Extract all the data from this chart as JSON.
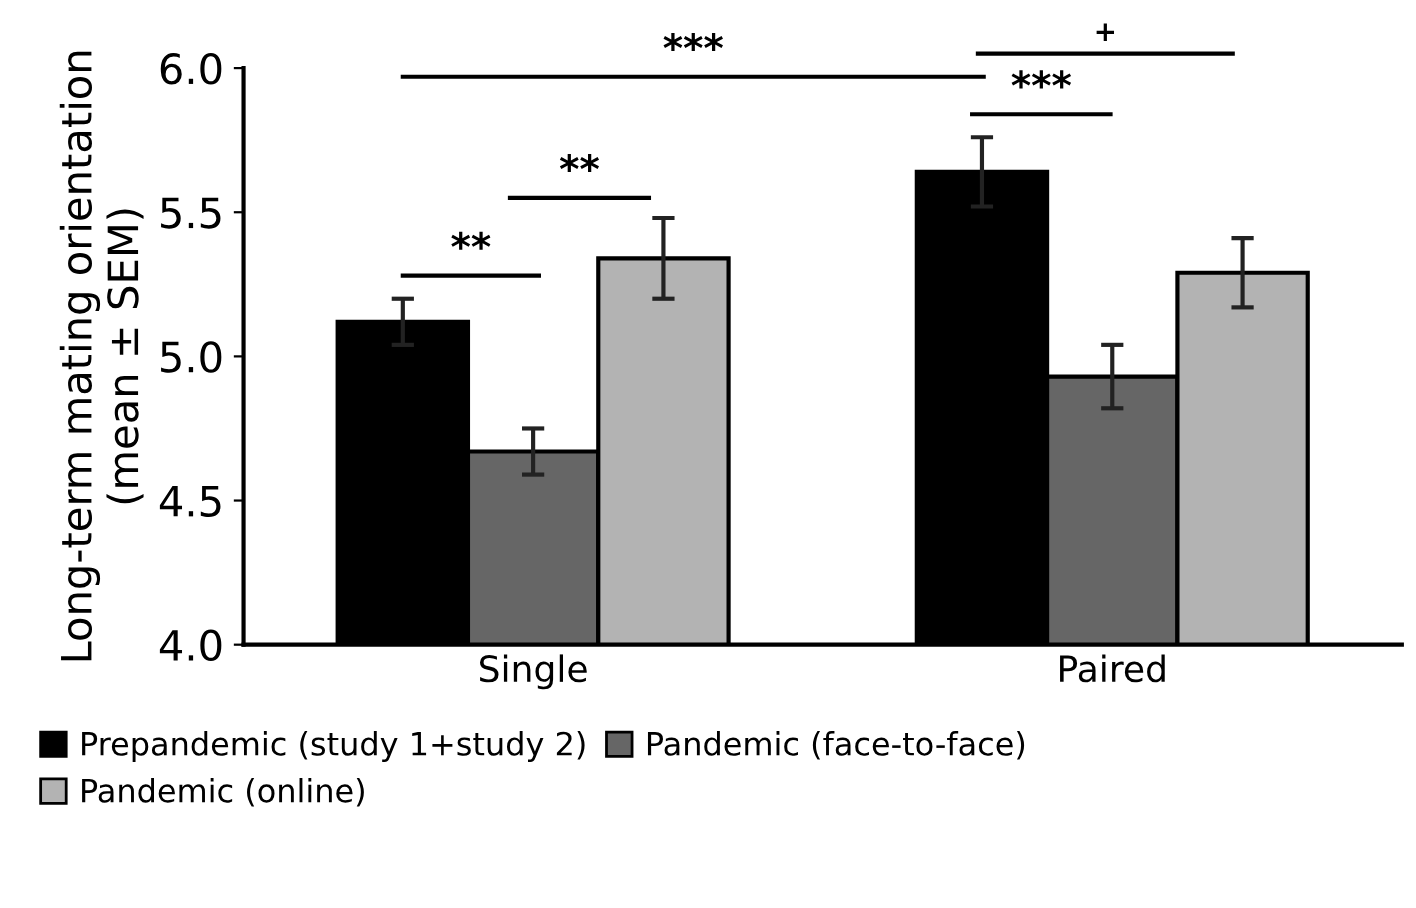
{
  "chart_data": {
    "type": "bar",
    "ylabel": "Long-term mating orientation\n(mean ± SEM)",
    "categories": [
      "Single",
      "Paired"
    ],
    "series": [
      {
        "name": "Prepandemic (study 1+study 2)",
        "color": "#000000",
        "values": [
          5.12,
          5.64
        ],
        "errors": [
          0.08,
          0.12
        ]
      },
      {
        "name": "Pandemic (face-to-face)",
        "color": "#666666",
        "values": [
          4.67,
          4.93
        ],
        "errors": [
          0.08,
          0.11
        ]
      },
      {
        "name": "Pandemic (online)",
        "color": "#b3b3b3",
        "values": [
          5.34,
          5.29
        ],
        "errors": [
          0.14,
          0.12
        ]
      }
    ],
    "ylim": [
      4.0,
      6.0
    ],
    "yticks": [
      {
        "value": 4.0,
        "label": "4.0"
      },
      {
        "value": 4.5,
        "label": "4.5"
      },
      {
        "value": 5.0,
        "label": "5.0"
      },
      {
        "value": 5.5,
        "label": "5.5"
      },
      {
        "value": 6.0,
        "label": "6.0"
      }
    ],
    "annotations": [
      "**",
      "**",
      "***",
      "***",
      "+"
    ],
    "legend": "bottom",
    "grid": false
  }
}
